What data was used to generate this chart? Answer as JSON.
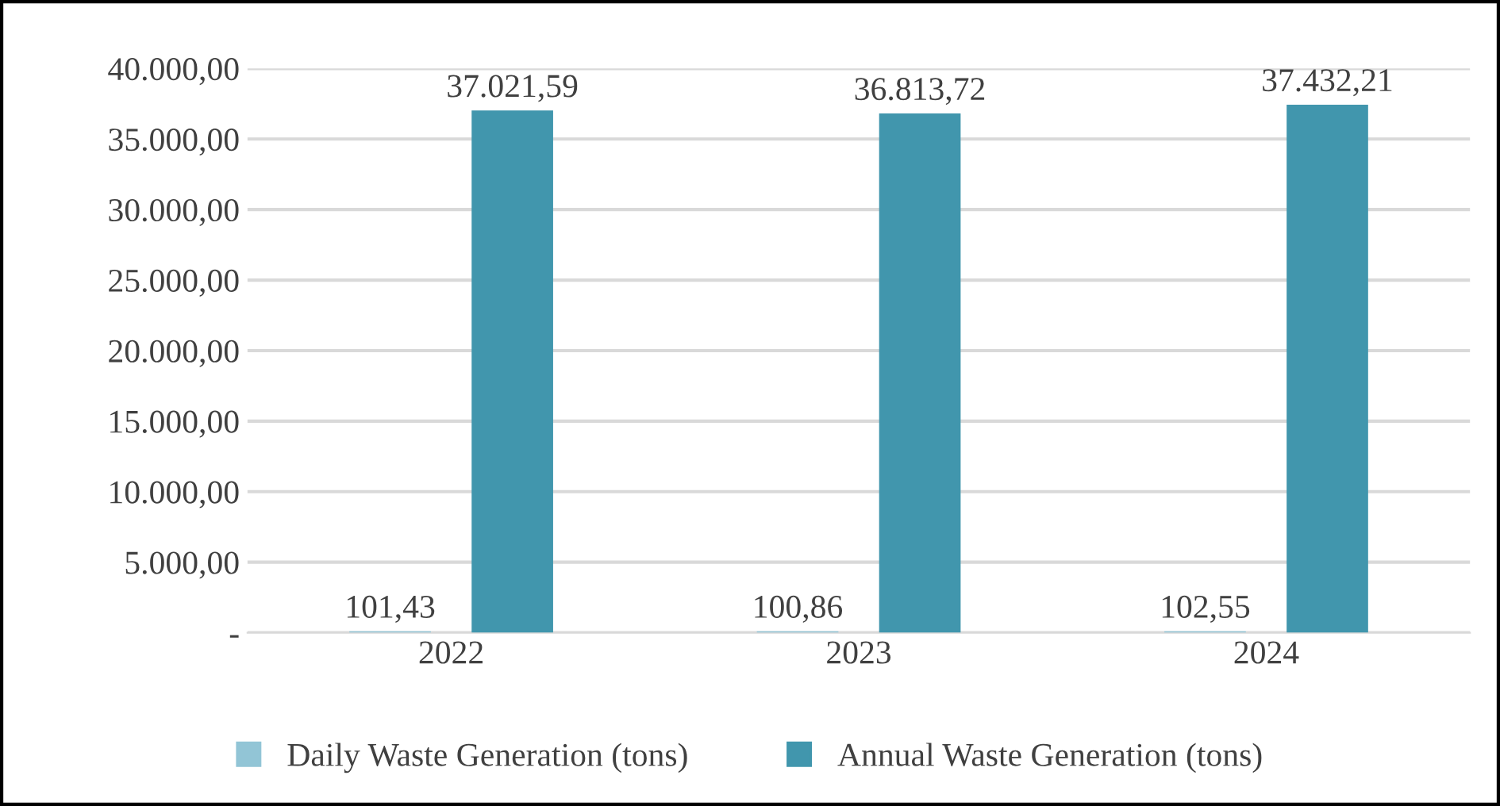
{
  "chart_data": {
    "type": "bar",
    "categories": [
      "2022",
      "2023",
      "2024"
    ],
    "series": [
      {
        "name": "Daily Waste Generation (tons)",
        "color": "#92c5d6",
        "values": [
          101.43,
          100.86,
          102.55
        ],
        "value_labels": [
          "101,43",
          "100,86",
          "102,55"
        ]
      },
      {
        "name": "Annual Waste Generation (tons)",
        "color": "#4196ad",
        "values": [
          37021.59,
          36813.72,
          37432.21
        ],
        "value_labels": [
          "37.021,59",
          "36.813,72",
          "37.432,21"
        ]
      }
    ],
    "ylim": [
      0,
      40000
    ],
    "yticks": [
      {
        "value": 0,
        "label": "-"
      },
      {
        "value": 5000,
        "label": "5.000,00"
      },
      {
        "value": 10000,
        "label": "10.000,00"
      },
      {
        "value": 15000,
        "label": "15.000,00"
      },
      {
        "value": 20000,
        "label": "20.000,00"
      },
      {
        "value": 25000,
        "label": "25.000,00"
      },
      {
        "value": 30000,
        "label": "30.000,00"
      },
      {
        "value": 35000,
        "label": "35.000,00"
      },
      {
        "value": 40000,
        "label": "40.000,00"
      }
    ],
    "grid": "y",
    "legend": "bottom"
  }
}
